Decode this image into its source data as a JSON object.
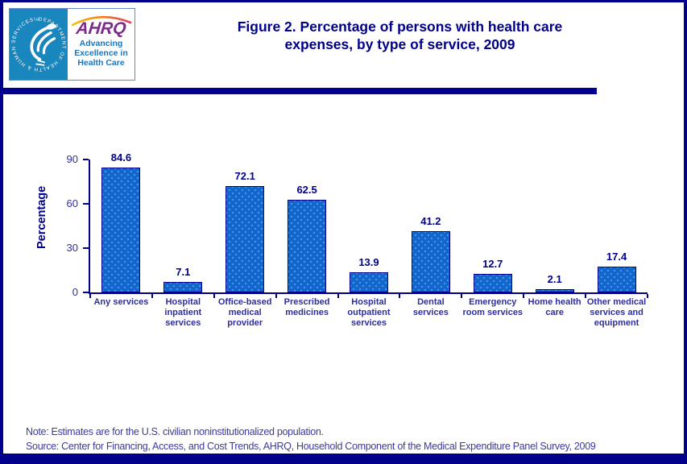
{
  "header": {
    "logo": {
      "hhs_seal_icon": "hhs-eagle-seal",
      "seal_ring_text": "DEPARTMENT OF HEALTH & HUMAN SERVICES · USA",
      "ahrq": "AHRQ",
      "tagline": [
        "Advancing",
        "Excellence in",
        "Health Care"
      ]
    },
    "title_line1": "Figure 2. Percentage of persons with health care",
    "title_line2": "expenses, by type of service, 2009"
  },
  "chart_data": {
    "type": "bar",
    "title": "Figure 2. Percentage of persons with health care expenses, by type of service, 2009",
    "categories": [
      "Any services",
      "Hospital inpatient services",
      "Office-based medical provider",
      "Prescribed medicines",
      "Hospital outpatient services",
      "Dental services",
      "Emergency room services",
      "Home health care",
      "Other medical services and equipment"
    ],
    "category_lines": [
      [
        "Any services"
      ],
      [
        "Hospital",
        "inpatient",
        "services"
      ],
      [
        "Office-based",
        "medical",
        "provider"
      ],
      [
        "Prescribed",
        "medicines"
      ],
      [
        "Hospital",
        "outpatient",
        "services"
      ],
      [
        "Dental",
        "services"
      ],
      [
        "Emergency",
        "room services"
      ],
      [
        "Home health",
        "care"
      ],
      [
        "Other medical",
        "services and",
        "equipment"
      ]
    ],
    "values": [
      84.6,
      7.1,
      72.1,
      62.5,
      13.9,
      41.2,
      12.7,
      2.1,
      17.4
    ],
    "ylabel": "Percentage",
    "xlabel": "",
    "yticks": [
      0,
      30,
      60,
      90
    ],
    "ylim": [
      0,
      90
    ],
    "grid": false,
    "legend": "none",
    "data_labels_shown": true,
    "bar_color": "#1266CB",
    "bar_dot_color": "#4696EA",
    "bar_border_color": "#00008B"
  },
  "footer": {
    "note": "Note: Estimates are for the U.S. civilian noninstitutionalized population.",
    "source": "Source: Center for Financing, Access, and Cost Trends, AHRQ, Household Component of the Medical Expenditure Panel Survey, 2009"
  },
  "colors": {
    "frame_navy": "#00008B",
    "title_navy": "#00008B",
    "axis_label": "#2E2E9C",
    "footer_text": "#3A3AA0",
    "seal_blue": "#1A86BE",
    "ahrq_purple": "#7B2B8B",
    "tagline_blue": "#1B75BB"
  }
}
